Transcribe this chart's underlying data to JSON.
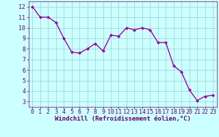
{
  "x": [
    0,
    1,
    2,
    3,
    4,
    5,
    6,
    7,
    8,
    9,
    10,
    11,
    12,
    13,
    14,
    15,
    16,
    17,
    18,
    19,
    20,
    21,
    22,
    23
  ],
  "y": [
    12.0,
    11.0,
    11.0,
    10.5,
    9.0,
    7.7,
    7.6,
    8.0,
    8.5,
    7.8,
    9.3,
    9.2,
    10.0,
    9.8,
    10.0,
    9.8,
    8.6,
    8.6,
    6.4,
    5.8,
    4.1,
    3.1,
    3.5,
    3.6
  ],
  "line_color": "#990099",
  "marker": "D",
  "marker_size": 2.0,
  "bg_color": "#ccffff",
  "grid_color": "#99cccc",
  "xlabel": "Windchill (Refroidissement éolien,°C)",
  "xlim": [
    -0.5,
    23.5
  ],
  "ylim": [
    2.5,
    12.5
  ],
  "yticks": [
    3,
    4,
    5,
    6,
    7,
    8,
    9,
    10,
    11,
    12
  ],
  "xticks": [
    0,
    1,
    2,
    3,
    4,
    5,
    6,
    7,
    8,
    9,
    10,
    11,
    12,
    13,
    14,
    15,
    16,
    17,
    18,
    19,
    20,
    21,
    22,
    23
  ],
  "axis_color": "#660066",
  "label_fontsize": 6.5,
  "tick_fontsize": 6.0,
  "linewidth": 1.0
}
